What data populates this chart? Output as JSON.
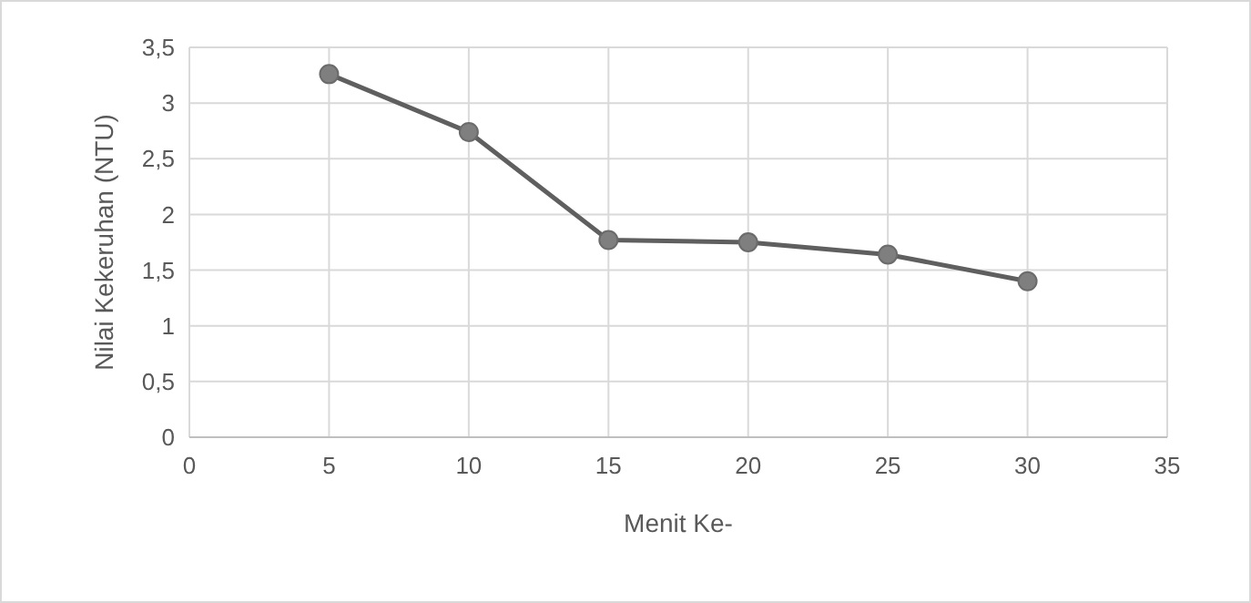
{
  "chart_data": {
    "type": "line",
    "xlabel": "Menit Ke-",
    "ylabel": "Nilai Kekeruhan (NTU)",
    "x": [
      5,
      10,
      15,
      20,
      25,
      30
    ],
    "series": [
      {
        "color": "#7f7f7f",
        "values": [
          3.26,
          2.74,
          1.77,
          1.75,
          1.64,
          1.4
        ]
      }
    ],
    "xlim": [
      0,
      35
    ],
    "xticks": [
      0,
      5,
      10,
      15,
      20,
      25,
      30,
      35
    ],
    "ylim": [
      0,
      3.5
    ],
    "yticks": [
      0,
      {
        "value": 0.5,
        "label": "0,5"
      },
      1,
      {
        "value": 1.5,
        "label": "1,5"
      },
      2,
      {
        "value": 2.5,
        "label": "2,5"
      },
      3,
      {
        "value": 3.5,
        "label": "3,5"
      }
    ],
    "grid": true,
    "marker": "circle",
    "line_style": "solid"
  }
}
